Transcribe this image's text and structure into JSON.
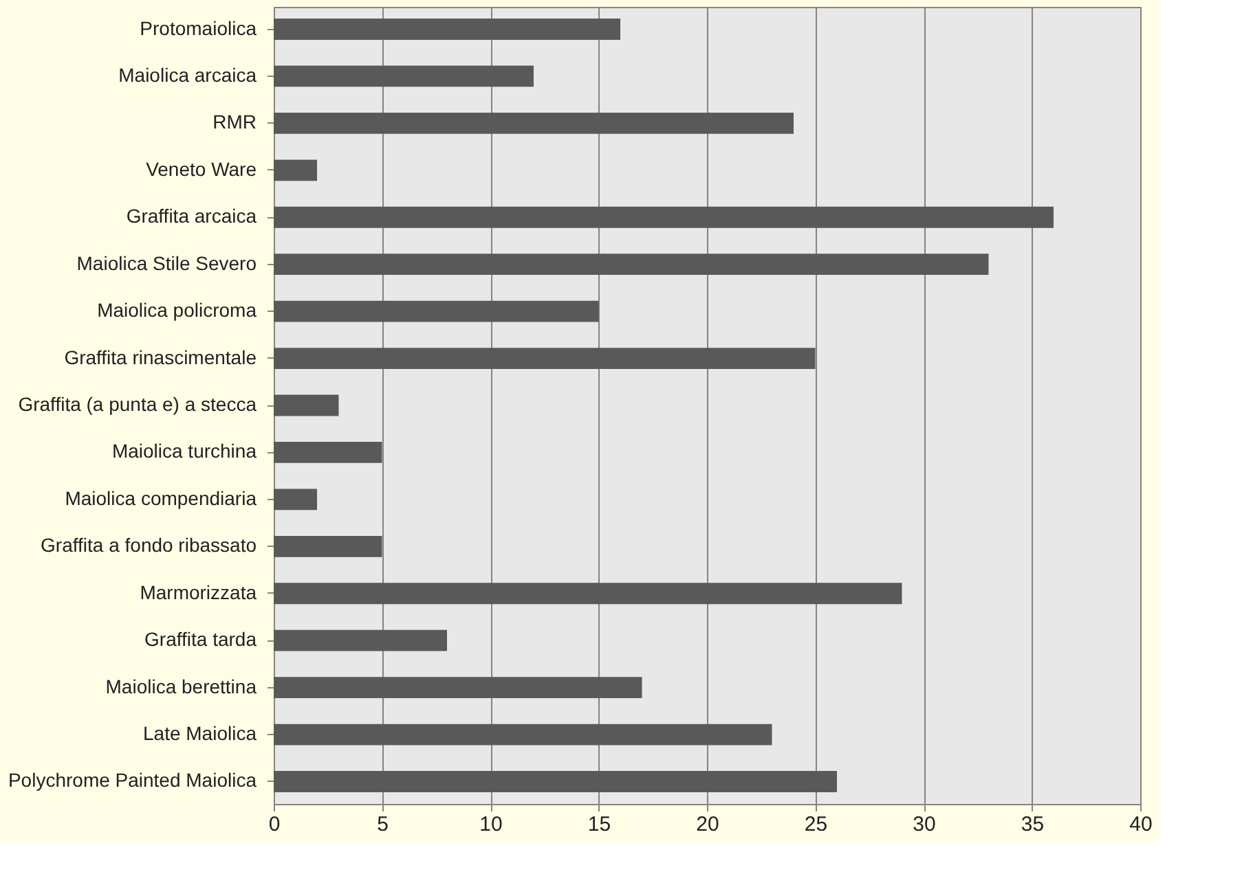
{
  "chart_data": {
    "type": "bar",
    "orientation": "horizontal",
    "categories": [
      "Protomaiolica",
      "Maiolica arcaica",
      "RMR",
      "Veneto Ware",
      "Graffita arcaica",
      "Maiolica Stile Severo",
      "Maiolica policroma",
      "Graffita rinascimentale",
      "Graffita (a punta e) a stecca",
      "Maiolica turchina",
      "Maiolica compendiaria",
      "Graffita a fondo ribassato",
      "Marmorizzata",
      "Graffita tarda",
      "Maiolica berettina",
      "Late Maiolica",
      "Polychrome Painted Maiolica"
    ],
    "values": [
      16,
      12,
      24,
      2,
      36,
      33,
      15,
      25,
      3,
      5,
      2,
      5,
      29,
      8,
      17,
      23,
      26
    ],
    "color": "#595959",
    "xlim": [
      0,
      40
    ],
    "xticks": [
      0,
      5,
      10,
      15,
      20,
      25,
      30,
      35,
      40
    ],
    "grid": "x",
    "legend": false
  }
}
